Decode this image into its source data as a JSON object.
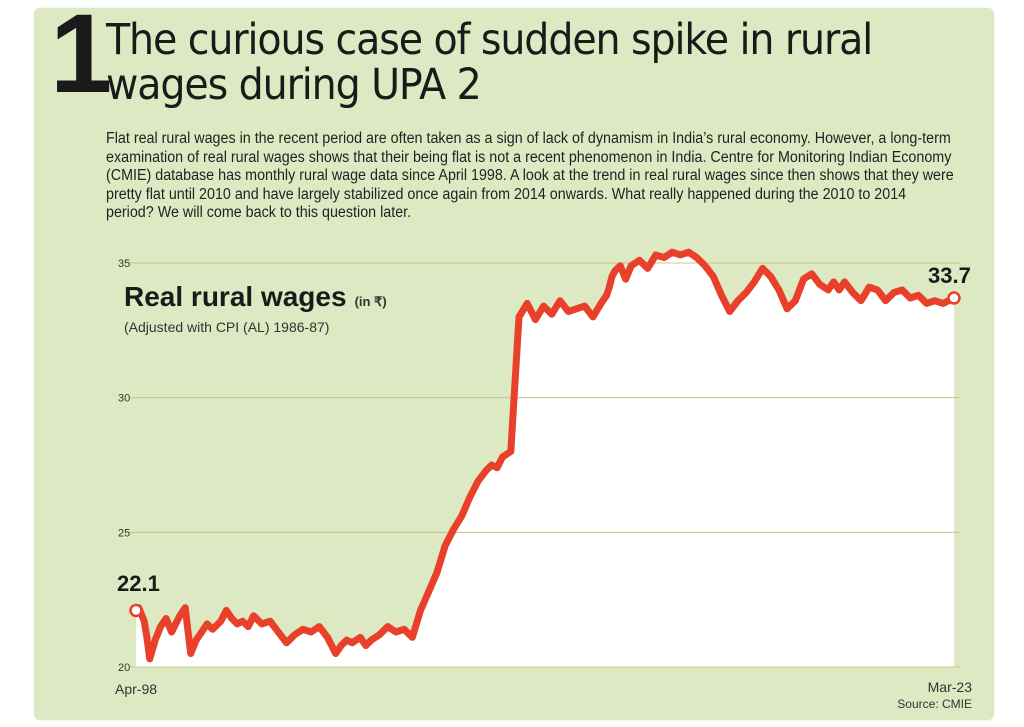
{
  "header": {
    "number": "1",
    "title": "The curious case of sudden spike in rural wages during UPA 2",
    "intro": "Flat real rural wages in the recent period are often taken as a sign of lack of dynamism in India’s rural economy. However, a long-term examination of real rural wages shows that their being flat is not a recent phenomenon in India. Centre for Monitoring Indian Economy (CMIE) database has monthly rural wage data since April 1998. A look at the trend in real rural wages since then shows that they were pretty flat until 2010 and have largely stabilized once again from 2014 onwards. What really happened during the 2010 to 2014 period? We will come back to this question later."
  },
  "colors": {
    "panel_bg": "#dde9c3",
    "plot_fill": "#ffffff",
    "line": "#e8402a",
    "grid": "#c9c38a"
  },
  "chart_data": {
    "type": "line",
    "title": "Real rural wages",
    "title_unit": "(in ₹)",
    "subtitle": "(Adjusted with CPI (AL) 1986-87)",
    "x_start_label": "Apr-98",
    "x_end_label": "Mar-23",
    "x": [
      "1998-04",
      "1998-05",
      "1998-07",
      "1998-08",
      "1998-09",
      "1998-11",
      "1999-01",
      "1999-03",
      "1999-05",
      "1999-08",
      "1999-10",
      "1999-12",
      "2000-02",
      "2000-04",
      "2000-06",
      "2000-08",
      "2000-11",
      "2001-01",
      "2001-03",
      "2001-05",
      "2001-07",
      "2001-09",
      "2001-11",
      "2002-02",
      "2002-05",
      "2002-08",
      "2002-11",
      "2003-02",
      "2003-05",
      "2003-08",
      "2003-11",
      "2004-02",
      "2004-05",
      "2004-07",
      "2004-09",
      "2004-11",
      "2005-02",
      "2005-04",
      "2005-06",
      "2005-09",
      "2005-12",
      "2006-03",
      "2006-06",
      "2006-09",
      "2006-12",
      "2007-03",
      "2007-06",
      "2007-09",
      "2007-12",
      "2008-03",
      "2008-06",
      "2008-09",
      "2008-12",
      "2009-02",
      "2009-04",
      "2009-06",
      "2009-09",
      "2009-12",
      "2010-03",
      "2010-06",
      "2010-09",
      "2010-12",
      "2011-03",
      "2011-06",
      "2011-09",
      "2011-12",
      "2012-03",
      "2012-06",
      "2012-08",
      "2012-09",
      "2012-10",
      "2012-11",
      "2013-01",
      "2013-03",
      "2013-05",
      "2013-08",
      "2013-11",
      "2014-02",
      "2014-05",
      "2014-08",
      "2014-11",
      "2015-02",
      "2015-05",
      "2015-08",
      "2015-11",
      "2016-02",
      "2016-05",
      "2016-08",
      "2016-11",
      "2017-02",
      "2017-05",
      "2017-08",
      "2017-11",
      "2018-02",
      "2018-05",
      "2018-08",
      "2018-11",
      "2019-02",
      "2019-05",
      "2019-07",
      "2019-09",
      "2019-11",
      "2020-02",
      "2020-05",
      "2020-08",
      "2020-11",
      "2021-02",
      "2021-05",
      "2021-08",
      "2021-11",
      "2022-02",
      "2022-05",
      "2022-08",
      "2022-11",
      "2023-01",
      "2023-03"
    ],
    "series": [
      {
        "values": [
          22.1,
          22.2,
          21.7,
          21.1,
          20.3,
          21.0,
          21.5,
          21.8,
          21.3,
          21.9,
          22.2,
          20.5,
          21.0,
          21.3,
          21.6,
          21.4,
          21.7,
          22.1,
          21.8,
          21.6,
          21.7,
          21.5,
          21.9,
          21.6,
          21.7,
          21.3,
          20.9,
          21.2,
          21.4,
          21.3,
          21.5,
          21.1,
          20.5,
          20.8,
          21.0,
          20.9,
          21.1,
          20.8,
          21.0,
          21.2,
          21.5,
          21.3,
          21.4,
          21.1,
          22.1,
          22.8,
          23.5,
          24.5,
          25.1,
          25.6,
          26.3,
          26.9,
          27.3,
          27.5,
          27.4,
          27.8,
          28.0,
          33.0,
          33.5,
          32.9,
          33.4,
          33.1,
          33.6,
          33.2,
          33.3,
          33.4,
          33.0,
          33.5,
          33.8,
          34.1,
          34.5,
          34.7,
          34.9,
          34.4,
          34.9,
          35.1,
          34.8,
          35.3,
          35.2,
          35.4,
          35.3,
          35.4,
          35.2,
          34.9,
          34.5,
          33.8,
          33.2,
          33.6,
          33.9,
          34.3,
          34.8,
          34.5,
          34.0,
          33.3,
          33.6,
          34.4,
          34.6,
          34.2,
          34.0,
          34.3,
          34.0,
          34.3,
          33.9,
          33.6,
          34.1,
          34.0,
          33.6,
          33.9,
          34.0,
          33.7,
          33.8,
          33.5,
          33.6,
          33.5,
          33.6,
          33.7
        ]
      }
    ],
    "ylim": [
      20,
      35
    ],
    "yticks": [
      20,
      25,
      30,
      35
    ],
    "ytick_labels": [
      "20",
      "25",
      "30",
      "35"
    ],
    "annotations": {
      "start_value": "22.1",
      "end_value": "33.7"
    },
    "grid": "horizontal",
    "source": "Source: CMIE"
  }
}
